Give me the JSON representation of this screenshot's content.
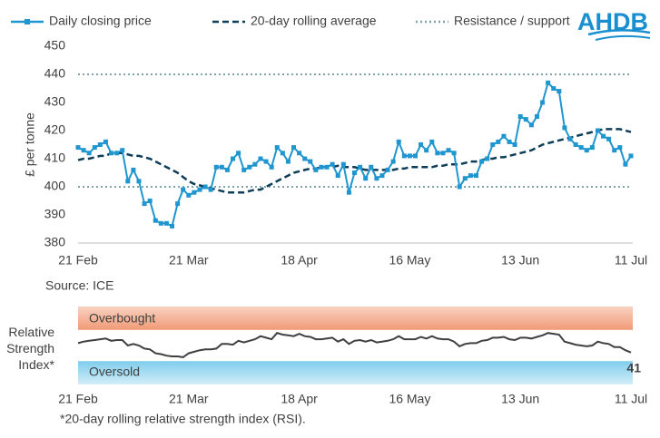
{
  "logo": "AHDB",
  "chart_data": [
    {
      "type": "line",
      "ylabel": "£ per tonne",
      "source": "Source: ICE",
      "categories": [
        "21 Feb",
        null,
        null,
        null,
        null,
        null,
        null,
        null,
        null,
        null,
        null,
        null,
        null,
        null,
        null,
        null,
        null,
        null,
        null,
        null,
        "21 Mar",
        null,
        null,
        null,
        null,
        null,
        null,
        null,
        null,
        null,
        null,
        null,
        null,
        null,
        null,
        null,
        null,
        null,
        null,
        null,
        "18 Apr",
        null,
        null,
        null,
        null,
        null,
        null,
        null,
        null,
        null,
        null,
        null,
        null,
        null,
        null,
        null,
        null,
        null,
        null,
        null,
        "16 May",
        null,
        null,
        null,
        null,
        null,
        null,
        null,
        null,
        null,
        null,
        null,
        null,
        null,
        null,
        null,
        null,
        null,
        null,
        null,
        "13 Jun",
        null,
        null,
        null,
        null,
        null,
        null,
        null,
        null,
        null,
        null,
        null,
        null,
        null,
        null,
        null,
        null,
        null,
        null,
        null,
        "11 Jul"
      ],
      "series": [
        {
          "name": "Daily closing price",
          "color": "#1f96cf",
          "style": "line-markers",
          "values": [
            414,
            413,
            412,
            414,
            415,
            416,
            412,
            412,
            413,
            402,
            406,
            402,
            394,
            395,
            388,
            387,
            387,
            386,
            394,
            399,
            397,
            398,
            399,
            400,
            399,
            407,
            407,
            406,
            410,
            412,
            406,
            407,
            408,
            410,
            409,
            407,
            414,
            412,
            409,
            414,
            412,
            410,
            409,
            406,
            407,
            407,
            408,
            404,
            408,
            398,
            405,
            407,
            403,
            407,
            403,
            404,
            406,
            409,
            416,
            411,
            411,
            411,
            415,
            413,
            416,
            412,
            412,
            413,
            412,
            400,
            403,
            404,
            404,
            409,
            410,
            415,
            416,
            418,
            416,
            415,
            425,
            424,
            422,
            425,
            430,
            437,
            435,
            434,
            421,
            417,
            415,
            414,
            413,
            414,
            420,
            418,
            417,
            413,
            414,
            408,
            411
          ]
        },
        {
          "name": "20-day rolling average",
          "color": "#0e3d58",
          "style": "dashed",
          "values": [
            409.5,
            410,
            410,
            410.5,
            411,
            411,
            412,
            412,
            412,
            411.5,
            411,
            411,
            410.5,
            410,
            409,
            408,
            407,
            406,
            405,
            403.5,
            402,
            401,
            400.5,
            400,
            399.5,
            399,
            398.5,
            398,
            398,
            398,
            398,
            398.5,
            399,
            399,
            400,
            401,
            402,
            403,
            404,
            405,
            405.5,
            406,
            406.5,
            406.5,
            407,
            407,
            407,
            407.5,
            407,
            407,
            407,
            406.5,
            406,
            406,
            406,
            406,
            406,
            406,
            406.5,
            406.5,
            407,
            407,
            407,
            407,
            407,
            407.5,
            407.5,
            408,
            408,
            408,
            408.5,
            409,
            409,
            409.5,
            410,
            410,
            410.5,
            410.5,
            411,
            411.5,
            412,
            412.5,
            413,
            414,
            415,
            415.5,
            416,
            416.5,
            417,
            417.5,
            418,
            418.5,
            419,
            419.5,
            420,
            420.5,
            420.5,
            420.5,
            420.5,
            420,
            419.5
          ]
        }
      ],
      "reference": {
        "name": "Resistance / support",
        "color": "#7fa3a8",
        "style": "dotted",
        "values": [
          440,
          400
        ]
      },
      "ylim": [
        380,
        450
      ],
      "yticks": [
        380,
        390,
        400,
        410,
        420,
        430,
        440,
        450
      ],
      "grid": false
    },
    {
      "type": "line",
      "ylabel": "Relative Strength Index*",
      "footnote": "*20-day rolling relative strength index (RSI).",
      "categories": [
        "21 Feb",
        null,
        null,
        null,
        null,
        null,
        null,
        null,
        null,
        null,
        null,
        null,
        null,
        null,
        null,
        null,
        null,
        null,
        null,
        null,
        "21 Mar",
        null,
        null,
        null,
        null,
        null,
        null,
        null,
        null,
        null,
        null,
        null,
        null,
        null,
        null,
        null,
        null,
        null,
        null,
        null,
        "18 Apr",
        null,
        null,
        null,
        null,
        null,
        null,
        null,
        null,
        null,
        null,
        null,
        null,
        null,
        null,
        null,
        null,
        null,
        null,
        null,
        "16 May",
        null,
        null,
        null,
        null,
        null,
        null,
        null,
        null,
        null,
        null,
        null,
        null,
        null,
        null,
        null,
        null,
        null,
        null,
        null,
        "13 Jun",
        null,
        null,
        null,
        null,
        null,
        null,
        null,
        null,
        null,
        null,
        null,
        null,
        null,
        null,
        null,
        null,
        null,
        null,
        null,
        "11 Jul"
      ],
      "values": [
        53,
        55,
        56,
        57,
        58,
        59,
        56,
        57,
        57,
        50,
        52,
        50,
        46,
        45,
        40,
        39,
        37,
        36,
        36,
        35,
        40,
        42,
        44,
        45,
        45,
        46,
        52,
        52,
        51,
        56,
        54,
        56,
        58,
        62,
        60,
        58,
        66,
        64,
        63,
        62,
        65,
        62,
        61,
        58,
        58,
        59,
        60,
        55,
        58,
        52,
        56,
        57,
        55,
        57,
        54,
        55,
        56,
        58,
        62,
        58,
        58,
        58,
        61,
        59,
        62,
        59,
        58,
        58,
        55,
        49,
        52,
        53,
        53,
        56,
        57,
        60,
        60,
        61,
        58,
        57,
        60,
        60,
        59,
        61,
        63,
        66,
        65,
        64,
        55,
        53,
        51,
        50,
        49,
        50,
        55,
        53,
        52,
        48,
        48,
        44,
        41
      ],
      "color": "#404040",
      "label_last": true,
      "ylim": [
        0,
        100
      ],
      "bands": [
        {
          "label": "Overbought",
          "from": 70,
          "to": 100,
          "color": "#f19a76"
        },
        {
          "label": "Oversold",
          "from": 0,
          "to": 30,
          "color": "#7fcdec"
        }
      ]
    }
  ]
}
